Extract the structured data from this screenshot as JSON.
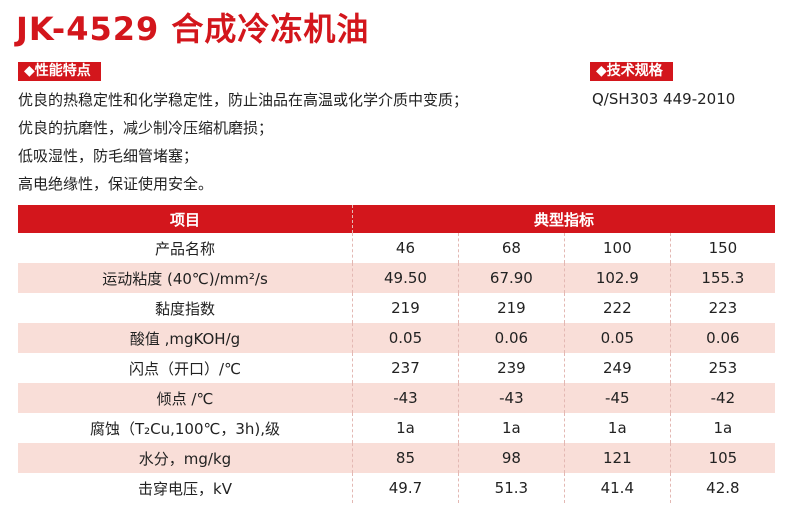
{
  "title": "JK-4529 合成冷冻机油",
  "features": {
    "label": "◆性能特点",
    "lines": [
      "优良的热稳定性和化学稳定性，防止油品在高温或化学介质中变质；",
      "优良的抗磨性，减少制冷压缩机磨损；",
      "低吸湿性，防毛细管堵塞；",
      "高电绝缘性，保证使用安全。"
    ]
  },
  "spec": {
    "label": "◆技术规格",
    "text": "Q/SH303 449-2010"
  },
  "table": {
    "header": [
      "项目",
      "典型指标"
    ],
    "rows": [
      [
        "产品名称",
        "46",
        "68",
        "100",
        "150"
      ],
      [
        "运动粘度 (40℃)/mm²/s",
        "49.50",
        "67.90",
        "102.9",
        "155.3"
      ],
      [
        "黏度指数",
        "219",
        "219",
        "222",
        "223"
      ],
      [
        "酸值 ,mgKOH/g",
        "0.05",
        "0.06",
        "0.05",
        "0.06"
      ],
      [
        "闪点（开口）/℃",
        "237",
        "239",
        "249",
        "253"
      ],
      [
        "倾点 /℃",
        "-43",
        "-43",
        "-45",
        "-42"
      ],
      [
        "腐蚀（T₂Cu,100℃，3h),级",
        "1a",
        "1a",
        "1a",
        "1a"
      ],
      [
        "水分，mg/kg",
        "85",
        "98",
        "121",
        "105"
      ],
      [
        "击穿电压，kV",
        "49.7",
        "51.3",
        "41.4",
        "42.8"
      ]
    ]
  }
}
